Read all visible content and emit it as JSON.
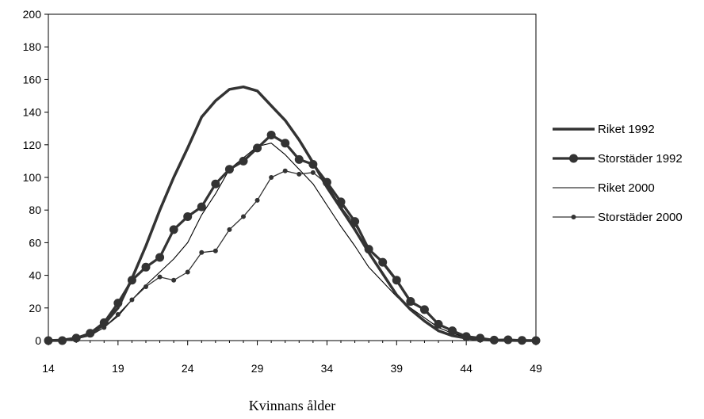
{
  "chart_data": {
    "type": "line",
    "title": "",
    "xlabel": "Kvinnans ålder",
    "ylabel": "",
    "xlim": [
      14,
      49
    ],
    "ylim": [
      0,
      200
    ],
    "x_ticks": [
      14,
      19,
      24,
      29,
      34,
      39,
      44,
      49
    ],
    "y_ticks": [
      0,
      20,
      40,
      60,
      80,
      100,
      120,
      140,
      160,
      180,
      200
    ],
    "grid": false,
    "legend_position": "right",
    "x": [
      14,
      15,
      16,
      17,
      18,
      19,
      20,
      21,
      22,
      23,
      24,
      25,
      26,
      27,
      28,
      29,
      30,
      31,
      32,
      33,
      34,
      35,
      36,
      37,
      38,
      39,
      40,
      41,
      42,
      43,
      44,
      45,
      46,
      47,
      48,
      49
    ],
    "series": [
      {
        "name": "Riket 1992",
        "style": "thick",
        "color": "#333333",
        "values": [
          0,
          0.3,
          1.5,
          4,
          10,
          20,
          38,
          58,
          80,
          100,
          118,
          137,
          147,
          154,
          155.5,
          153,
          144,
          135,
          123,
          109,
          94,
          81,
          68,
          54,
          41,
          28,
          19,
          12,
          6,
          3,
          1.5,
          0.6,
          0.2,
          0.1,
          0,
          0
        ]
      },
      {
        "name": "Storstäder 1992",
        "style": "thick-markers",
        "color": "#333333",
        "values": [
          0,
          0,
          1.5,
          4.5,
          11,
          23,
          37,
          45,
          51,
          68,
          76,
          82,
          96,
          105,
          110,
          118,
          126,
          121,
          111,
          108,
          97,
          85,
          73,
          56,
          48,
          37,
          24,
          19,
          10,
          6,
          2.5,
          1.5,
          0.3,
          0.5,
          0.1,
          0
        ]
      },
      {
        "name": "Riket 2000",
        "style": "thin",
        "color": "#000000",
        "values": [
          0,
          0.2,
          1,
          3,
          8,
          15,
          25,
          34,
          42,
          50,
          60,
          77,
          90,
          105,
          112,
          119,
          121,
          114,
          105,
          96,
          83,
          70,
          58,
          45,
          36,
          27,
          20,
          14,
          8,
          4.5,
          2,
          0.9,
          0.3,
          0.1,
          0,
          0
        ]
      },
      {
        "name": "Storstäder 2000",
        "style": "thin-markers",
        "color": "#333333",
        "values": [
          0,
          0,
          1,
          3.5,
          8,
          16,
          25,
          33,
          39,
          37,
          42,
          54,
          55,
          68,
          76,
          86,
          100,
          104,
          102,
          103,
          96,
          82,
          71,
          57,
          47,
          36,
          23,
          19,
          10,
          6,
          2.5,
          1.5,
          0.5,
          0.5,
          0.1,
          0
        ]
      }
    ]
  }
}
